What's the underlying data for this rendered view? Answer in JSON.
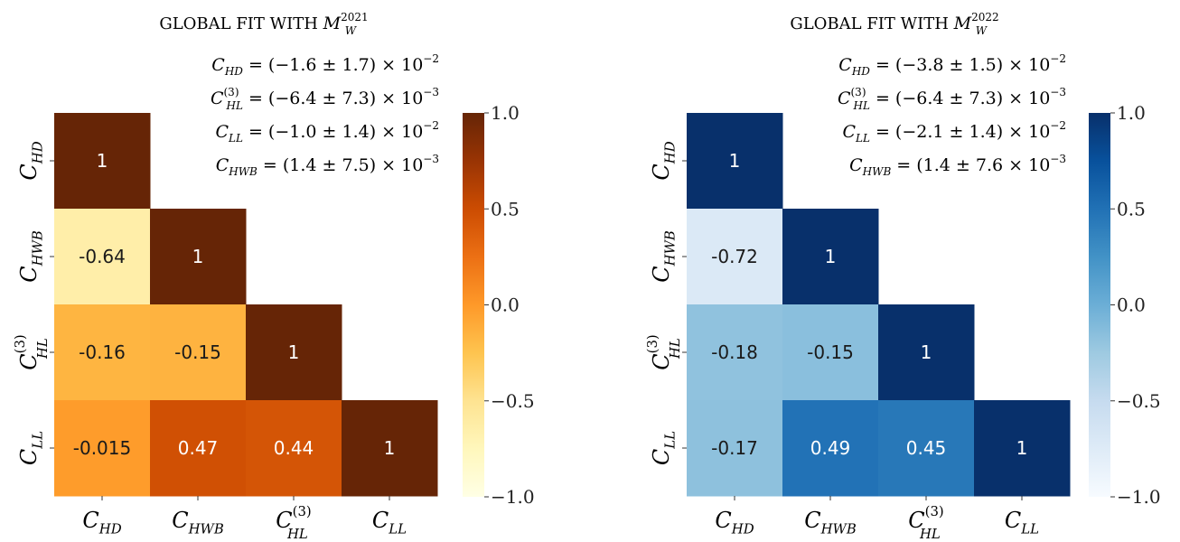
{
  "chart_data": [
    {
      "type": "heatmap",
      "title": {
        "prefix": "GLOBAL FIT WITH ",
        "symbol": "M",
        "sub": "W",
        "sup": "2021"
      },
      "variables": [
        {
          "base": "C",
          "sub": "HD",
          "sup": ""
        },
        {
          "base": "C",
          "sub": "HWB",
          "sup": ""
        },
        {
          "base": "C",
          "sub": "HL",
          "sup": "(3)"
        },
        {
          "base": "C",
          "sub": "LL",
          "sup": ""
        }
      ],
      "matrix": [
        [
          1,
          null,
          null,
          null
        ],
        [
          -0.64,
          1,
          null,
          null
        ],
        [
          -0.16,
          -0.15,
          1,
          null
        ],
        [
          -0.015,
          0.47,
          0.44,
          1
        ]
      ],
      "labels": [
        [
          "1",
          "",
          "",
          ""
        ],
        [
          "-0.64",
          "1",
          "",
          ""
        ],
        [
          "-0.16",
          "-0.15",
          "1",
          ""
        ],
        [
          "-0.015",
          "0.47",
          "0.44",
          "1"
        ]
      ],
      "equations": [
        {
          "sub": "HD",
          "sup": "",
          "val": "(−1.6 ± 1.7) × 10",
          "exp": "−2"
        },
        {
          "sub": "HL",
          "sup": "(3)",
          "val": "(−6.4 ± 7.3) × 10",
          "exp": "−3"
        },
        {
          "sub": "LL",
          "sup": "",
          "val": "(−1.0 ± 1.4) × 10",
          "exp": "−2"
        },
        {
          "sub": "HWB",
          "sup": "",
          "val": "(1.4 ± 7.5) × 10",
          "exp": "−3"
        }
      ],
      "colorbar": {
        "min": -1.0,
        "max": 1.0,
        "ticks": [
          "1.0",
          "0.5",
          "0.0",
          "−0.5",
          "−1.0"
        ],
        "tick_values": [
          1.0,
          0.5,
          0.0,
          -0.5,
          -1.0
        ]
      },
      "colormap": "YlOrBr",
      "colors": [
        "#ffffe5",
        "#fff7bc",
        "#fee391",
        "#fec44f",
        "#fe9929",
        "#ec7014",
        "#cc4c02",
        "#993404",
        "#662506"
      ]
    },
    {
      "type": "heatmap",
      "title": {
        "prefix": "GLOBAL FIT WITH ",
        "symbol": "M",
        "sub": "W",
        "sup": "2022"
      },
      "variables": [
        {
          "base": "C",
          "sub": "HD",
          "sup": ""
        },
        {
          "base": "C",
          "sub": "HWB",
          "sup": ""
        },
        {
          "base": "C",
          "sub": "HL",
          "sup": "(3)"
        },
        {
          "base": "C",
          "sub": "LL",
          "sup": ""
        }
      ],
      "matrix": [
        [
          1,
          null,
          null,
          null
        ],
        [
          -0.72,
          1,
          null,
          null
        ],
        [
          -0.18,
          -0.15,
          1,
          null
        ],
        [
          -0.17,
          0.49,
          0.45,
          1
        ]
      ],
      "labels": [
        [
          "1",
          "",
          "",
          ""
        ],
        [
          "-0.72",
          "1",
          "",
          ""
        ],
        [
          "-0.18",
          "-0.15",
          "1",
          ""
        ],
        [
          "-0.17",
          "0.49",
          "0.45",
          "1"
        ]
      ],
      "equations": [
        {
          "sub": "HD",
          "sup": "",
          "val": "(−3.8 ± 1.5) × 10",
          "exp": "−2"
        },
        {
          "sub": "HL",
          "sup": "(3)",
          "val": "(−6.4 ± 7.3) × 10",
          "exp": "−3"
        },
        {
          "sub": "LL",
          "sup": "",
          "val": "(−2.1 ± 1.4) × 10",
          "exp": "−2"
        },
        {
          "sub": "HWB",
          "sup": "",
          "val": "(1.4 ± 7.6 × 10",
          "exp": "−3"
        }
      ],
      "colorbar": {
        "min": -1.0,
        "max": 1.0,
        "ticks": [
          "1.0",
          "0.5",
          "0.0",
          "−0.5",
          "−1.0"
        ],
        "tick_values": [
          1.0,
          0.5,
          0.0,
          -0.5,
          -1.0
        ]
      },
      "colormap": "Blues",
      "colors": [
        "#f7fbff",
        "#deebf7",
        "#c6dbef",
        "#9ecae1",
        "#6baed6",
        "#4292c6",
        "#2171b5",
        "#08519c",
        "#08306b"
      ]
    }
  ]
}
